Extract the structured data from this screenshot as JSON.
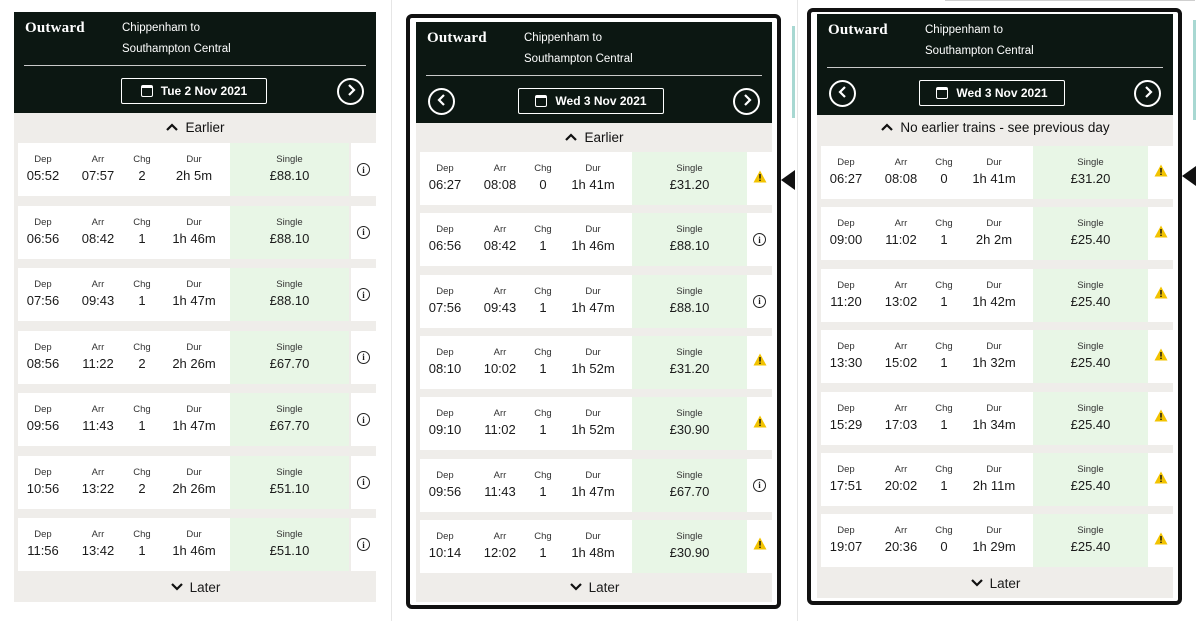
{
  "panels": [
    {
      "title": "Outward",
      "route_line1": "Chippenham to",
      "route_line2": "Southampton Central",
      "date": "Tue 2 Nov 2021",
      "has_prev": false,
      "has_next": true,
      "earlier_label": "Earlier",
      "later_label": "Later",
      "col_labels": {
        "dep": "Dep",
        "arr": "Arr",
        "chg": "Chg",
        "dur": "Dur",
        "fare": "Single"
      },
      "journeys": [
        {
          "dep": "05:52",
          "arr": "07:57",
          "chg": "2",
          "dur": "2h 5m",
          "price": "£88.10",
          "icon": "info-icon"
        },
        {
          "dep": "06:56",
          "arr": "08:42",
          "chg": "1",
          "dur": "1h 46m",
          "price": "£88.10",
          "icon": "info-icon"
        },
        {
          "dep": "07:56",
          "arr": "09:43",
          "chg": "1",
          "dur": "1h 47m",
          "price": "£88.10",
          "icon": "info-icon"
        },
        {
          "dep": "08:56",
          "arr": "11:22",
          "chg": "2",
          "dur": "2h 26m",
          "price": "£67.70",
          "icon": "info-icon"
        },
        {
          "dep": "09:56",
          "arr": "11:43",
          "chg": "1",
          "dur": "1h 47m",
          "price": "£67.70",
          "icon": "info-icon"
        },
        {
          "dep": "10:56",
          "arr": "13:22",
          "chg": "2",
          "dur": "2h 26m",
          "price": "£51.10",
          "icon": "info-icon"
        },
        {
          "dep": "11:56",
          "arr": "13:42",
          "chg": "1",
          "dur": "1h 46m",
          "price": "£51.10",
          "icon": "info-icon"
        }
      ]
    },
    {
      "title": "Outward",
      "route_line1": "Chippenham to",
      "route_line2": "Southampton Central",
      "date": "Wed 3 Nov 2021",
      "has_prev": true,
      "has_next": true,
      "earlier_label": "Earlier",
      "later_label": "Later",
      "col_labels": {
        "dep": "Dep",
        "arr": "Arr",
        "chg": "Chg",
        "dur": "Dur",
        "fare": "Single"
      },
      "journeys": [
        {
          "dep": "06:27",
          "arr": "08:08",
          "chg": "0",
          "dur": "1h 41m",
          "price": "£31.20",
          "icon": "warning-icon"
        },
        {
          "dep": "06:56",
          "arr": "08:42",
          "chg": "1",
          "dur": "1h 46m",
          "price": "£88.10",
          "icon": "info-icon"
        },
        {
          "dep": "07:56",
          "arr": "09:43",
          "chg": "1",
          "dur": "1h 47m",
          "price": "£88.10",
          "icon": "info-icon"
        },
        {
          "dep": "08:10",
          "arr": "10:02",
          "chg": "1",
          "dur": "1h 52m",
          "price": "£31.20",
          "icon": "warning-icon"
        },
        {
          "dep": "09:10",
          "arr": "11:02",
          "chg": "1",
          "dur": "1h 52m",
          "price": "£30.90",
          "icon": "warning-icon"
        },
        {
          "dep": "09:56",
          "arr": "11:43",
          "chg": "1",
          "dur": "1h 47m",
          "price": "£67.70",
          "icon": "info-icon"
        },
        {
          "dep": "10:14",
          "arr": "12:02",
          "chg": "1",
          "dur": "1h 48m",
          "price": "£30.90",
          "icon": "warning-icon"
        }
      ]
    },
    {
      "title": "Outward",
      "route_line1": "Chippenham to",
      "route_line2": "Southampton Central",
      "date": "Wed 3 Nov 2021",
      "has_prev": true,
      "has_next": true,
      "earlier_label": "No earlier trains - see previous day",
      "later_label": "Later",
      "col_labels": {
        "dep": "Dep",
        "arr": "Arr",
        "chg": "Chg",
        "dur": "Dur",
        "fare": "Single"
      },
      "journeys": [
        {
          "dep": "06:27",
          "arr": "08:08",
          "chg": "0",
          "dur": "1h 41m",
          "price": "£31.20",
          "icon": "warning-icon"
        },
        {
          "dep": "09:00",
          "arr": "11:02",
          "chg": "1",
          "dur": "2h 2m",
          "price": "£25.40",
          "icon": "warning-icon"
        },
        {
          "dep": "11:20",
          "arr": "13:02",
          "chg": "1",
          "dur": "1h 42m",
          "price": "£25.40",
          "icon": "warning-icon"
        },
        {
          "dep": "13:30",
          "arr": "15:02",
          "chg": "1",
          "dur": "1h 32m",
          "price": "£25.40",
          "icon": "warning-icon"
        },
        {
          "dep": "15:29",
          "arr": "17:03",
          "chg": "1",
          "dur": "1h 34m",
          "price": "£25.40",
          "icon": "warning-icon"
        },
        {
          "dep": "17:51",
          "arr": "20:02",
          "chg": "1",
          "dur": "2h 11m",
          "price": "£25.40",
          "icon": "warning-icon"
        },
        {
          "dep": "19:07",
          "arr": "20:36",
          "chg": "0",
          "dur": "1h 29m",
          "price": "£25.40",
          "icon": "warning-icon"
        }
      ]
    }
  ],
  "colors": {
    "header": "#0c1712",
    "fare_bg": "#e8f6e6",
    "panel_bg": "#efedea",
    "warning": "#f2c300"
  }
}
